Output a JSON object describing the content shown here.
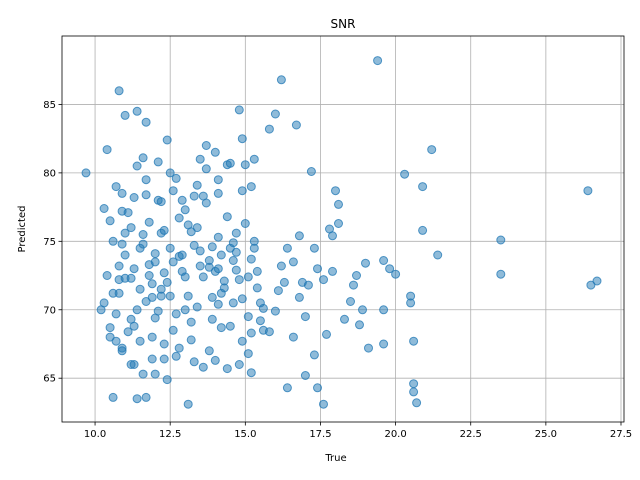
{
  "chart_data": {
    "type": "scatter",
    "title": "SNR",
    "xlabel": "True",
    "ylabel": "Predicted",
    "xlim": [
      8.9,
      27.6
    ],
    "ylim": [
      61.8,
      90.0
    ],
    "x_ticks": [
      "10.0",
      "12.5",
      "15.0",
      "17.5",
      "20.0",
      "22.5",
      "25.0",
      "27.5"
    ],
    "y_ticks": [
      "65",
      "70",
      "75",
      "80",
      "85"
    ],
    "x_tick_values": [
      10.0,
      12.5,
      15.0,
      17.5,
      20.0,
      22.5,
      25.0,
      27.5
    ],
    "y_tick_values": [
      65,
      70,
      75,
      80,
      85
    ],
    "grid": true,
    "marker_color": "#1f77b4",
    "marker_alpha": 0.5,
    "points": [
      [
        9.7,
        80.0
      ],
      [
        10.2,
        70.0
      ],
      [
        10.3,
        70.5
      ],
      [
        10.3,
        77.4
      ],
      [
        10.4,
        72.5
      ],
      [
        10.4,
        81.7
      ],
      [
        10.5,
        68.0
      ],
      [
        10.5,
        68.7
      ],
      [
        10.6,
        75.0
      ],
      [
        10.6,
        63.6
      ],
      [
        10.7,
        79.0
      ],
      [
        10.7,
        67.7
      ],
      [
        10.8,
        86.0
      ],
      [
        10.8,
        72.2
      ],
      [
        10.8,
        71.2
      ],
      [
        10.9,
        78.5
      ],
      [
        10.9,
        67.2
      ],
      [
        11.0,
        84.2
      ],
      [
        11.0,
        72.3
      ],
      [
        11.0,
        74.0
      ],
      [
        11.1,
        77.1
      ],
      [
        11.2,
        69.3
      ],
      [
        11.2,
        66.0
      ],
      [
        11.3,
        68.8
      ],
      [
        11.4,
        84.5
      ],
      [
        11.4,
        80.5
      ],
      [
        11.5,
        71.5
      ],
      [
        11.5,
        74.5
      ],
      [
        11.6,
        75.5
      ],
      [
        11.6,
        81.1
      ],
      [
        11.7,
        83.7
      ],
      [
        11.7,
        78.4
      ],
      [
        11.8,
        73.3
      ],
      [
        11.8,
        72.5
      ],
      [
        11.9,
        68.0
      ],
      [
        11.9,
        70.9
      ],
      [
        12.0,
        69.4
      ],
      [
        12.0,
        74.1
      ],
      [
        12.1,
        78.0
      ],
      [
        12.2,
        75.6
      ],
      [
        12.2,
        71.0
      ],
      [
        12.3,
        72.7
      ],
      [
        12.3,
        66.4
      ],
      [
        12.4,
        82.4
      ],
      [
        12.5,
        74.5
      ],
      [
        12.6,
        73.5
      ],
      [
        12.7,
        79.6
      ],
      [
        12.7,
        66.6
      ],
      [
        12.8,
        76.7
      ],
      [
        12.9,
        72.8
      ],
      [
        13.0,
        70.0
      ],
      [
        13.1,
        76.2
      ],
      [
        13.1,
        63.1
      ],
      [
        13.2,
        69.1
      ],
      [
        13.3,
        66.2
      ],
      [
        13.4,
        79.1
      ],
      [
        13.5,
        81.0
      ],
      [
        13.5,
        74.3
      ],
      [
        13.6,
        78.3
      ],
      [
        13.7,
        82.0
      ],
      [
        13.8,
        73.6
      ],
      [
        13.9,
        70.9
      ],
      [
        14.0,
        81.5
      ],
      [
        14.1,
        78.5
      ],
      [
        14.1,
        73.0
      ],
      [
        14.2,
        68.7
      ],
      [
        14.3,
        72.1
      ],
      [
        14.4,
        80.6
      ],
      [
        14.5,
        74.5
      ],
      [
        14.6,
        70.5
      ],
      [
        14.7,
        75.6
      ],
      [
        14.8,
        84.6
      ],
      [
        14.8,
        72.2
      ],
      [
        14.9,
        82.5
      ],
      [
        15.0,
        80.6
      ],
      [
        15.1,
        69.5
      ],
      [
        15.1,
        66.8
      ],
      [
        15.2,
        79.0
      ],
      [
        15.3,
        74.5
      ],
      [
        15.4,
        72.8
      ],
      [
        15.5,
        70.5
      ],
      [
        15.6,
        68.5
      ],
      [
        15.8,
        83.2
      ],
      [
        16.0,
        84.3
      ],
      [
        16.1,
        71.4
      ],
      [
        16.2,
        86.8
      ],
      [
        16.3,
        72.0
      ],
      [
        16.4,
        74.5
      ],
      [
        16.4,
        64.3
      ],
      [
        16.6,
        68.0
      ],
      [
        16.7,
        83.5
      ],
      [
        16.8,
        75.4
      ],
      [
        16.9,
        72.0
      ],
      [
        17.0,
        69.5
      ],
      [
        17.0,
        65.2
      ],
      [
        17.2,
        80.1
      ],
      [
        17.3,
        74.5
      ],
      [
        17.3,
        66.7
      ],
      [
        17.4,
        64.3
      ],
      [
        17.6,
        63.1
      ],
      [
        17.7,
        68.2
      ],
      [
        17.8,
        75.9
      ],
      [
        17.9,
        72.8
      ],
      [
        18.0,
        78.7
      ],
      [
        18.1,
        76.3
      ],
      [
        18.3,
        69.3
      ],
      [
        18.5,
        70.6
      ],
      [
        18.6,
        71.8
      ],
      [
        18.7,
        72.5
      ],
      [
        18.8,
        68.9
      ],
      [
        18.9,
        70.0
      ],
      [
        19.0,
        73.4
      ],
      [
        19.1,
        67.2
      ],
      [
        19.4,
        88.2
      ],
      [
        19.6,
        73.6
      ],
      [
        19.6,
        67.5
      ],
      [
        19.6,
        70.0
      ],
      [
        19.8,
        73.0
      ],
      [
        20.0,
        72.6
      ],
      [
        20.3,
        79.9
      ],
      [
        20.5,
        71.0
      ],
      [
        20.5,
        70.5
      ],
      [
        20.6,
        67.7
      ],
      [
        20.6,
        64.6
      ],
      [
        20.6,
        64.0
      ],
      [
        20.7,
        63.2
      ],
      [
        20.9,
        75.8
      ],
      [
        20.9,
        79.0
      ],
      [
        21.2,
        81.7
      ],
      [
        21.4,
        74.0
      ],
      [
        23.5,
        75.1
      ],
      [
        23.5,
        72.6
      ],
      [
        26.4,
        78.7
      ],
      [
        26.5,
        71.8
      ],
      [
        26.7,
        72.1
      ],
      [
        10.9,
        74.8
      ],
      [
        11.3,
        73.0
      ],
      [
        11.7,
        70.6
      ],
      [
        12.1,
        69.9
      ],
      [
        12.5,
        71.0
      ],
      [
        12.9,
        74.0
      ],
      [
        13.2,
        75.7
      ],
      [
        13.6,
        72.4
      ],
      [
        13.9,
        69.3
      ],
      [
        14.3,
        71.6
      ],
      [
        14.6,
        73.6
      ],
      [
        14.9,
        70.8
      ],
      [
        15.3,
        75.0
      ],
      [
        13.8,
        67.0
      ],
      [
        12.6,
        68.5
      ],
      [
        11.4,
        70.0
      ],
      [
        10.6,
        71.2
      ],
      [
        10.8,
        73.2
      ],
      [
        11.0,
        75.6
      ],
      [
        11.2,
        76.0
      ],
      [
        11.8,
        76.4
      ],
      [
        12.2,
        77.9
      ],
      [
        12.6,
        78.7
      ],
      [
        13.0,
        77.3
      ],
      [
        13.4,
        76.0
      ],
      [
        13.7,
        77.8
      ],
      [
        14.1,
        75.3
      ],
      [
        14.4,
        76.8
      ],
      [
        14.7,
        74.2
      ],
      [
        15.0,
        76.3
      ],
      [
        15.2,
        73.7
      ],
      [
        15.4,
        71.6
      ],
      [
        15.6,
        70.1
      ],
      [
        15.8,
        68.4
      ],
      [
        16.0,
        69.9
      ],
      [
        16.2,
        73.2
      ],
      [
        16.6,
        73.5
      ],
      [
        16.8,
        70.9
      ],
      [
        17.1,
        71.8
      ],
      [
        17.4,
        73.0
      ],
      [
        17.6,
        72.2
      ],
      [
        17.9,
        75.4
      ],
      [
        18.1,
        77.7
      ],
      [
        12.0,
        65.3
      ],
      [
        12.4,
        64.9
      ],
      [
        12.8,
        67.2
      ],
      [
        13.2,
        67.8
      ],
      [
        13.6,
        65.8
      ],
      [
        14.0,
        66.3
      ],
      [
        14.4,
        65.7
      ],
      [
        14.8,
        66.0
      ],
      [
        15.2,
        65.4
      ],
      [
        11.4,
        63.5
      ],
      [
        11.7,
        63.6
      ],
      [
        11.6,
        65.3
      ],
      [
        11.3,
        66.0
      ],
      [
        10.9,
        67.0
      ],
      [
        11.1,
        68.4
      ],
      [
        11.5,
        67.7
      ],
      [
        11.9,
        66.4
      ],
      [
        12.3,
        67.5
      ],
      [
        12.7,
        69.7
      ],
      [
        13.1,
        71.0
      ],
      [
        13.5,
        73.2
      ],
      [
        13.9,
        74.6
      ],
      [
        14.2,
        71.2
      ],
      [
        14.5,
        68.8
      ],
      [
        14.9,
        67.7
      ],
      [
        15.2,
        68.3
      ],
      [
        15.5,
        69.2
      ],
      [
        12.4,
        72.0
      ],
      [
        12.0,
        73.5
      ],
      [
        11.6,
        74.8
      ],
      [
        11.2,
        72.3
      ],
      [
        10.7,
        69.7
      ],
      [
        10.5,
        76.5
      ],
      [
        10.9,
        77.2
      ],
      [
        11.3,
        78.2
      ],
      [
        11.7,
        79.5
      ],
      [
        12.1,
        80.8
      ],
      [
        12.5,
        80.0
      ],
      [
        12.9,
        78.0
      ],
      [
        13.3,
        78.3
      ],
      [
        13.7,
        80.3
      ],
      [
        14.1,
        79.5
      ],
      [
        14.5,
        80.7
      ],
      [
        14.9,
        78.7
      ],
      [
        15.3,
        81.0
      ],
      [
        12.2,
        71.5
      ],
      [
        12.8,
        73.9
      ],
      [
        13.4,
        70.2
      ],
      [
        14.0,
        72.8
      ],
      [
        14.6,
        74.9
      ],
      [
        15.1,
        72.4
      ],
      [
        13.0,
        72.4
      ],
      [
        13.3,
        74.7
      ],
      [
        13.8,
        73.1
      ],
      [
        14.2,
        74.0
      ],
      [
        14.7,
        72.9
      ],
      [
        12.3,
        75.8
      ],
      [
        11.9,
        71.9
      ],
      [
        14.1,
        70.4
      ]
    ]
  }
}
